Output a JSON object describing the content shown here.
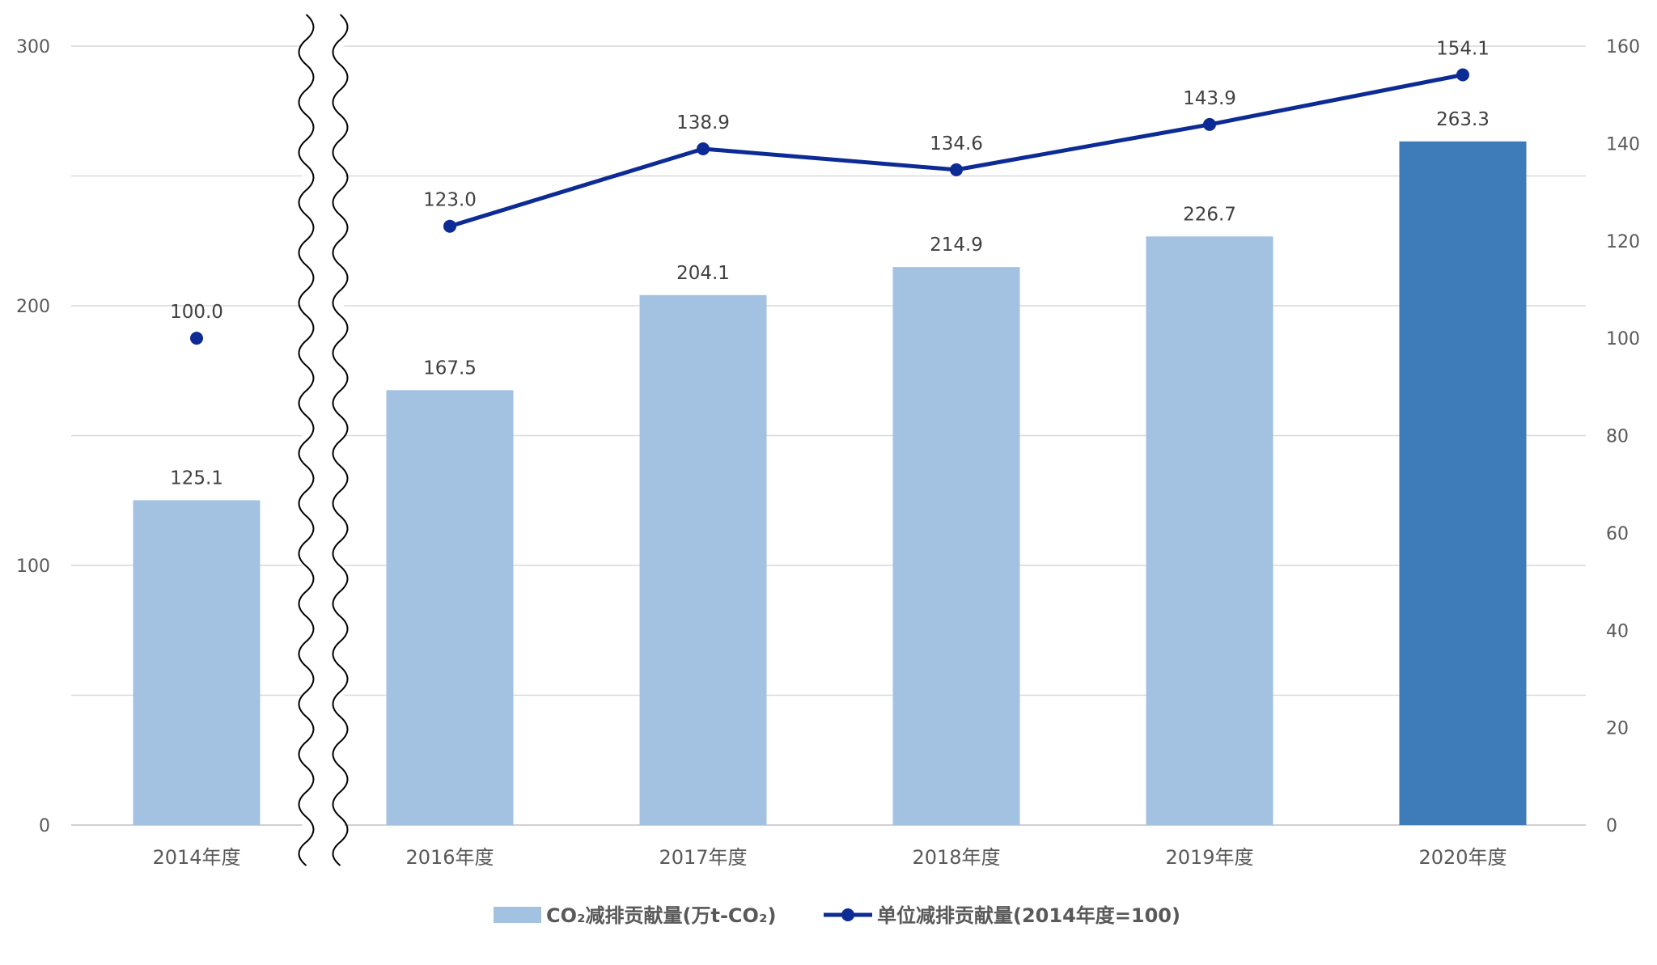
{
  "chart_data": {
    "type": "bar",
    "categories": [
      "2014年度",
      "2016年度",
      "2017年度",
      "2018年度",
      "2019年度",
      "2020年度"
    ],
    "axis_break_after_category": 0,
    "y_left": {
      "min": 0,
      "max": 300,
      "major_step": 100,
      "minor_step": 50,
      "ticks": [
        "0",
        "100",
        "200",
        "300"
      ]
    },
    "y_right": {
      "min": 0,
      "max": 160,
      "step": 20,
      "ticks": [
        "0",
        "20",
        "40",
        "60",
        "80",
        "100",
        "120",
        "140",
        "160"
      ]
    },
    "grid": true,
    "legend_position": "bottom",
    "series": [
      {
        "name": "CO₂减排贡献量(万t-CO₂)",
        "kind": "bar",
        "axis": "left",
        "values": [
          125.1,
          167.5,
          204.1,
          214.9,
          226.7,
          263.3
        ],
        "labels": [
          "125.1",
          "167.5",
          "204.1",
          "214.9",
          "226.7",
          "263.3"
        ],
        "color": "#a3c2e1",
        "highlight_index": 5,
        "highlight_color": "#3e7bb9"
      },
      {
        "name": "单位减排贡献量(2014年度=100)",
        "kind": "line",
        "axis": "right",
        "values": [
          100.0,
          123.0,
          138.9,
          134.6,
          143.9,
          154.1
        ],
        "labels": [
          "100.0",
          "123.0",
          "138.9",
          "134.6",
          "143.9",
          "154.1"
        ],
        "color": "#0d2b94",
        "line_starts_at_index": 1
      }
    ]
  }
}
